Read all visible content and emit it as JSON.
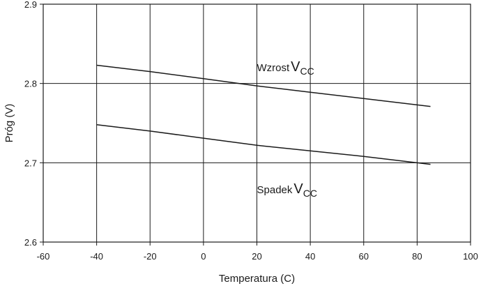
{
  "chart_data": {
    "type": "line",
    "title": "",
    "xlabel": "Temperatura (C)",
    "ylabel": "Próg (V)",
    "xlim": [
      -60,
      100
    ],
    "ylim": [
      2.6,
      2.9
    ],
    "xticks": [
      -60,
      -40,
      -20,
      0,
      20,
      40,
      60,
      80,
      100
    ],
    "yticks": [
      2.6,
      2.7,
      2.8,
      2.9
    ],
    "xtick_labels": [
      "-60",
      "-40",
      "-20",
      "0",
      "20",
      "40",
      "60",
      "80",
      "100"
    ],
    "ytick_labels": [
      "2.6",
      "2.7",
      "2.8",
      "2.9"
    ],
    "grid": true,
    "series": [
      {
        "name": "Wzrost VCC",
        "label_main": "Wzrost",
        "label_v": "V",
        "label_sub": "CC",
        "label_at": [
          20,
          2.82
        ],
        "x": [
          -40,
          -20,
          0,
          20,
          40,
          60,
          85
        ],
        "y": [
          2.823,
          2.815,
          2.806,
          2.797,
          2.789,
          2.781,
          2.771
        ]
      },
      {
        "name": "Spadek VCC",
        "label_main": "Spadek",
        "label_v": "V",
        "label_sub": "CC",
        "label_at": [
          20,
          2.666
        ],
        "x": [
          -40,
          -20,
          0,
          20,
          40,
          60,
          85
        ],
        "y": [
          2.748,
          2.74,
          2.731,
          2.722,
          2.715,
          2.708,
          2.698
        ]
      }
    ],
    "colors": {
      "line": "#1a1a1a",
      "grid": "#1a1a1a",
      "frame": "#1a1a1a",
      "background": "#ffffff"
    }
  }
}
